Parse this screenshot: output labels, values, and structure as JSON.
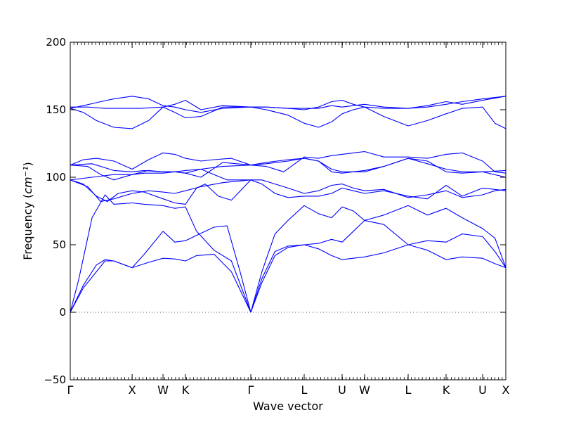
{
  "chart_data": {
    "type": "line",
    "title": "",
    "xlabel": "Wave vector",
    "ylabel": "Frequency",
    "ylabel_unit": "cm⁻¹",
    "ylim": [
      -50,
      200
    ],
    "yticks": [
      -50,
      0,
      50,
      100,
      150,
      200
    ],
    "grid": false,
    "zero_line": 0,
    "line_color": "#0000ff",
    "ref_line_color": "#555555",
    "x_symmetry_points": [
      {
        "label": "Γ",
        "x": 0.0
      },
      {
        "label": "X",
        "x": 0.1421
      },
      {
        "label": "W",
        "x": 0.213
      },
      {
        "label": "K",
        "x": 0.2645
      },
      {
        "label": "Γ",
        "x": 0.4145
      },
      {
        "label": "L",
        "x": 0.5371
      },
      {
        "label": "U",
        "x": 0.6242
      },
      {
        "label": "W",
        "x": 0.6758
      },
      {
        "label": "L",
        "x": 0.7758
      },
      {
        "label": "K",
        "x": 0.8629
      },
      {
        "label": "U",
        "x": 0.9468
      },
      {
        "label": "X",
        "x": 1.0
      }
    ],
    "series": [
      {
        "x": [
          0.0,
          0.03,
          0.06,
          0.08,
          0.1,
          0.1421,
          0.18,
          0.213,
          0.24,
          0.2645,
          0.29,
          0.33,
          0.37,
          0.4145
        ],
        "y": [
          0,
          20,
          35,
          39,
          38,
          33,
          37,
          40,
          39.5,
          38,
          42,
          43,
          30,
          0
        ]
      },
      {
        "x": [
          0.0,
          0.02,
          0.05,
          0.08,
          0.1,
          0.1421,
          0.17,
          0.213,
          0.24,
          0.2645,
          0.29,
          0.33,
          0.37,
          0.4145
        ],
        "y": [
          0,
          25,
          70,
          87,
          80,
          81,
          80,
          79,
          77,
          78,
          60,
          46,
          38,
          0
        ]
      },
      {
        "x": [
          0.0,
          0.03,
          0.06,
          0.08,
          0.1,
          0.1421,
          0.17,
          0.213,
          0.24,
          0.2645,
          0.29,
          0.33,
          0.36,
          0.39,
          0.4145
        ],
        "y": [
          0,
          18,
          30,
          38,
          38,
          33,
          43,
          60,
          52,
          53,
          57,
          63,
          64,
          30,
          0
        ]
      },
      {
        "x": [
          0.0,
          0.03,
          0.06,
          0.085,
          0.11,
          0.1421,
          0.17,
          0.213,
          0.24,
          0.2645,
          0.29,
          0.31,
          0.34,
          0.37,
          0.4145
        ],
        "y": [
          98,
          95,
          86,
          82,
          88,
          90,
          89,
          84,
          81,
          80,
          92,
          95,
          86,
          83,
          98
        ]
      },
      {
        "x": [
          0.0,
          0.04,
          0.07,
          0.1,
          0.1421,
          0.18,
          0.213,
          0.24,
          0.2645,
          0.3,
          0.35,
          0.4145
        ],
        "y": [
          98,
          93,
          82,
          84,
          88,
          90,
          89,
          88,
          90,
          93,
          96,
          98
        ]
      },
      {
        "x": [
          0.0,
          0.05,
          0.1,
          0.1421,
          0.17,
          0.213,
          0.24,
          0.2645,
          0.3,
          0.33,
          0.36,
          0.4145
        ],
        "y": [
          98,
          100,
          102,
          102,
          103,
          103,
          104,
          105,
          106,
          102,
          98,
          98
        ]
      },
      {
        "x": [
          0.0,
          0.04,
          0.07,
          0.1,
          0.1421,
          0.18,
          0.213,
          0.24,
          0.2645,
          0.3,
          0.35,
          0.4145
        ],
        "y": [
          109,
          108,
          102,
          98,
          102,
          105,
          104,
          104,
          103,
          106,
          108,
          109
        ]
      },
      {
        "x": [
          0.0,
          0.03,
          0.06,
          0.1,
          0.1421,
          0.18,
          0.213,
          0.24,
          0.2645,
          0.3,
          0.33,
          0.37,
          0.4145
        ],
        "y": [
          109,
          113,
          114,
          112,
          106,
          113,
          118,
          117,
          114,
          112,
          113,
          114,
          109
        ]
      },
      {
        "x": [
          0.0,
          0.05,
          0.1,
          0.1421,
          0.17,
          0.213,
          0.24,
          0.2645,
          0.3,
          0.35,
          0.4145
        ],
        "y": [
          109,
          110,
          105,
          104,
          105,
          104,
          104,
          103,
          100,
          111,
          109
        ]
      },
      {
        "x": [
          0.0,
          0.03,
          0.07,
          0.1,
          0.1421,
          0.18,
          0.213,
          0.24,
          0.2645,
          0.3,
          0.35,
          0.4145
        ],
        "y": [
          151,
          153,
          156,
          158,
          160,
          158,
          153,
          152,
          150,
          148,
          151,
          152
        ]
      },
      {
        "x": [
          0.0,
          0.03,
          0.06,
          0.1,
          0.1421,
          0.18,
          0.213,
          0.24,
          0.2645,
          0.3,
          0.35,
          0.4145
        ],
        "y": [
          151,
          148,
          142,
          137,
          136,
          142,
          152,
          154,
          157,
          150,
          153,
          152
        ]
      },
      {
        "x": [
          0.0,
          0.04,
          0.08,
          0.12,
          0.16,
          0.213,
          0.24,
          0.2645,
          0.3,
          0.35,
          0.4145
        ],
        "y": [
          152,
          152,
          151,
          151,
          151,
          152,
          148,
          144,
          145,
          152,
          152
        ]
      },
      {
        "x": [
          0.4145,
          0.44,
          0.47,
          0.5,
          0.5371,
          0.57,
          0.6,
          0.6242,
          0.65,
          0.6758,
          0.72,
          0.7758,
          0.82,
          0.8629,
          0.9,
          0.9468,
          0.975,
          1.0
        ],
        "y": [
          0,
          22,
          42,
          48,
          50,
          47,
          42,
          39,
          40,
          41,
          44,
          50,
          46,
          39,
          41,
          40,
          36,
          33
        ]
      },
      {
        "x": [
          0.4145,
          0.44,
          0.47,
          0.5,
          0.5371,
          0.57,
          0.6,
          0.6242,
          0.65,
          0.6758,
          0.72,
          0.7758,
          0.82,
          0.8629,
          0.9,
          0.9468,
          0.975,
          1.0
        ],
        "y": [
          0,
          25,
          45,
          49,
          50,
          51,
          54,
          52,
          60,
          68,
          65,
          50,
          53,
          52,
          58,
          56,
          45,
          33
        ]
      },
      {
        "x": [
          0.4145,
          0.44,
          0.47,
          0.5,
          0.5371,
          0.57,
          0.6,
          0.6242,
          0.65,
          0.6758,
          0.72,
          0.7758,
          0.82,
          0.8629,
          0.9,
          0.9468,
          0.975,
          1.0
        ],
        "y": [
          0,
          30,
          58,
          68,
          79,
          73,
          70,
          78,
          75,
          68,
          72,
          79,
          72,
          77,
          70,
          62,
          55,
          33
        ]
      },
      {
        "x": [
          0.4145,
          0.44,
          0.47,
          0.5,
          0.5371,
          0.57,
          0.6,
          0.6242,
          0.65,
          0.6758,
          0.72,
          0.7758,
          0.82,
          0.8629,
          0.9,
          0.9468,
          0.975,
          1.0
        ],
        "y": [
          98,
          95,
          88,
          85,
          86,
          86,
          88,
          92,
          90,
          88,
          90,
          86,
          84,
          94,
          86,
          92,
          91,
          90
        ]
      },
      {
        "x": [
          0.4145,
          0.44,
          0.47,
          0.5,
          0.5371,
          0.57,
          0.6,
          0.6242,
          0.65,
          0.6758,
          0.72,
          0.7758,
          0.82,
          0.8629,
          0.9,
          0.9468,
          0.975,
          1.0
        ],
        "y": [
          98,
          98,
          95,
          92,
          88,
          90,
          94,
          95,
          92,
          90,
          91,
          85,
          87,
          90,
          85,
          87,
          90,
          91
        ]
      },
      {
        "x": [
          0.4145,
          0.45,
          0.5,
          0.5371,
          0.57,
          0.6,
          0.6242,
          0.65,
          0.6758,
          0.72,
          0.7758,
          0.82,
          0.8629,
          0.9,
          0.9468,
          1.0
        ],
        "y": [
          109,
          110,
          112,
          114,
          112,
          106,
          104,
          104,
          105,
          108,
          114,
          110,
          106,
          104,
          104,
          105
        ]
      },
      {
        "x": [
          0.4145,
          0.45,
          0.49,
          0.5371,
          0.57,
          0.6,
          0.6242,
          0.65,
          0.6758,
          0.72,
          0.7758,
          0.82,
          0.8629,
          0.9,
          0.9468,
          0.975,
          1.0
        ],
        "y": [
          109,
          108,
          104,
          115,
          114,
          116,
          117,
          118,
          119,
          115,
          115,
          114,
          117,
          118,
          112,
          104,
          103
        ]
      },
      {
        "x": [
          0.4145,
          0.45,
          0.5,
          0.5371,
          0.57,
          0.6,
          0.6242,
          0.65,
          0.6758,
          0.72,
          0.7758,
          0.82,
          0.8629,
          0.9,
          0.9468,
          1.0
        ],
        "y": [
          109,
          111,
          113,
          114,
          112,
          104,
          103,
          104,
          104,
          108,
          114,
          112,
          104,
          103,
          104,
          100
        ]
      },
      {
        "x": [
          0.4145,
          0.45,
          0.5,
          0.5371,
          0.57,
          0.6,
          0.6242,
          0.65,
          0.6758,
          0.72,
          0.7758,
          0.82,
          0.8629,
          0.9,
          0.9468,
          1.0
        ],
        "y": [
          152,
          152,
          151,
          150,
          152,
          156,
          157,
          154,
          152,
          151,
          151,
          153,
          156,
          154,
          157,
          160
        ]
      },
      {
        "x": [
          0.4145,
          0.45,
          0.5,
          0.5371,
          0.57,
          0.6,
          0.6242,
          0.65,
          0.6758,
          0.72,
          0.7758,
          0.82,
          0.8629,
          0.9,
          0.9468,
          0.975,
          1.0
        ],
        "y": [
          152,
          150,
          146,
          140,
          137,
          141,
          147,
          150,
          152,
          145,
          138,
          142,
          147,
          151,
          152,
          140,
          136
        ]
      },
      {
        "x": [
          0.4145,
          0.45,
          0.5,
          0.5371,
          0.57,
          0.6,
          0.6242,
          0.65,
          0.6758,
          0.72,
          0.7758,
          0.82,
          0.8629,
          0.9,
          0.9468,
          1.0
        ],
        "y": [
          152,
          152,
          151,
          151,
          151,
          153,
          152,
          153,
          154,
          152,
          151,
          152,
          154,
          156,
          158,
          160
        ]
      }
    ]
  }
}
